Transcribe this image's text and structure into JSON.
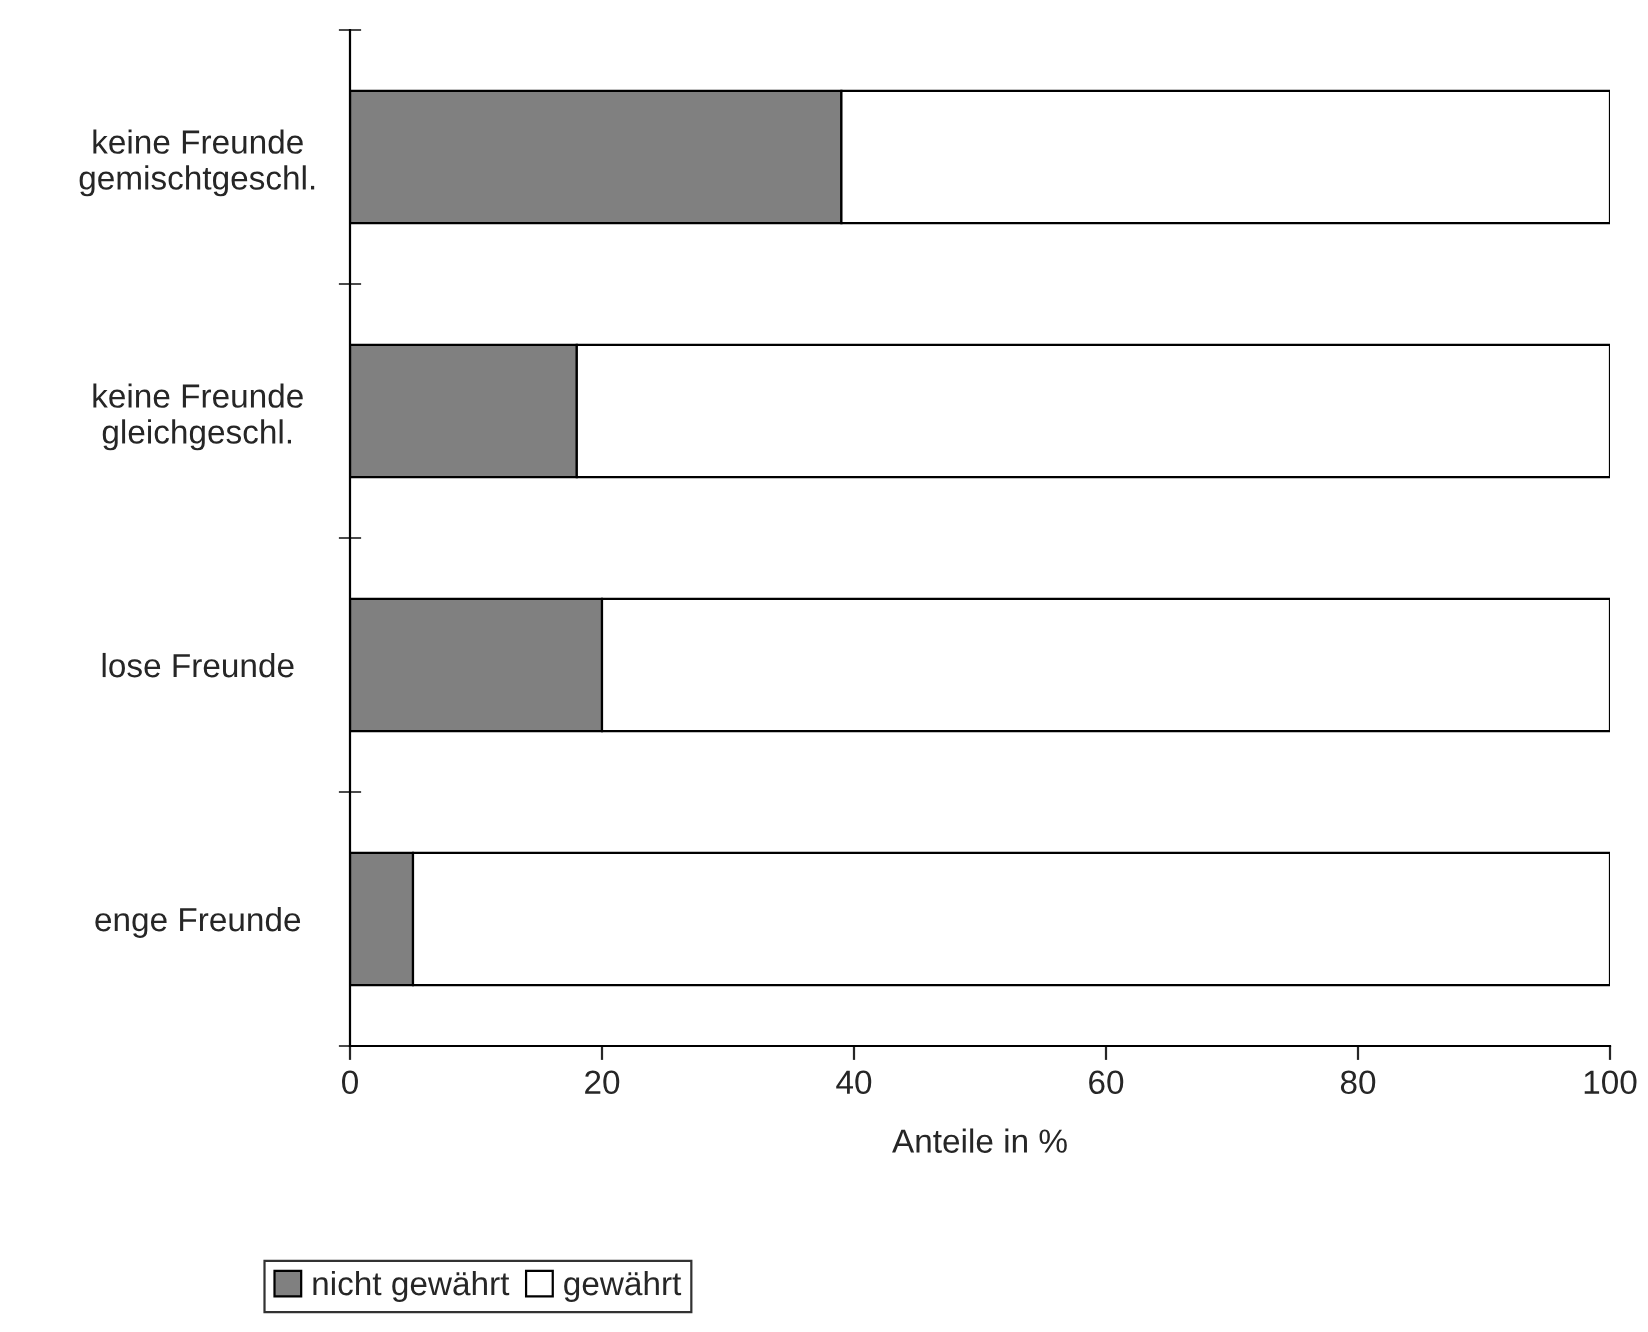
{
  "chart_data": {
    "type": "bar",
    "orientation": "horizontal",
    "stacked": true,
    "categories": [
      "keine Freunde\ngemischtgeschl.",
      "keine Freunde\ngleichgeschl.",
      "lose Freunde",
      "enge Freunde"
    ],
    "series": [
      {
        "name": "nicht gewährt",
        "color": "#808080",
        "values": [
          39,
          18,
          20,
          5
        ]
      },
      {
        "name": "gewährt",
        "color": "#ffffff",
        "values": [
          61,
          82,
          80,
          95
        ]
      }
    ],
    "xlabel": "Anteile in %",
    "xlim": [
      0,
      100
    ],
    "xticks": [
      0,
      20,
      40,
      60,
      80,
      100
    ],
    "grid": false,
    "legend": "bottom"
  }
}
